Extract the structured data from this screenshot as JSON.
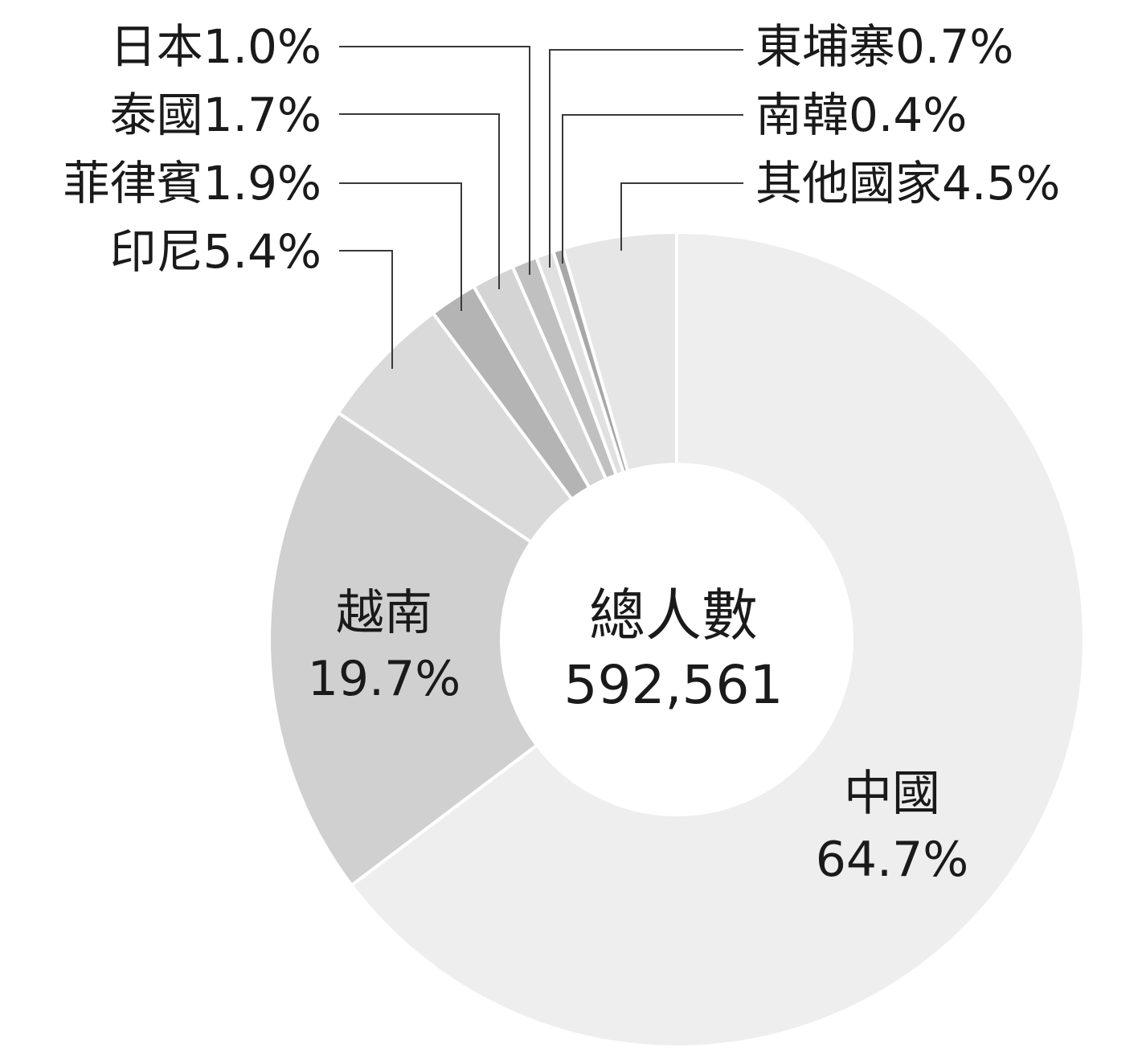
{
  "chart_data": {
    "type": "pie",
    "style": "donut",
    "center": {
      "title": "總人數",
      "value": "592,561"
    },
    "slices": [
      {
        "name": "中國",
        "percent": 64.7,
        "label": "中國",
        "value_label": "64.7%",
        "color": "#eeeeee"
      },
      {
        "name": "越南",
        "percent": 19.7,
        "label": "越南",
        "value_label": "19.7%",
        "color": "#d0d0d0"
      },
      {
        "name": "印尼",
        "percent": 5.4,
        "label": "印尼5.4%",
        "color": "#dadada"
      },
      {
        "name": "菲律賓",
        "percent": 1.9,
        "label": "菲律賓1.9%",
        "color": "#b4b4b4"
      },
      {
        "name": "泰國",
        "percent": 1.7,
        "label": "泰國1.7%",
        "color": "#d4d4d4"
      },
      {
        "name": "日本",
        "percent": 1.0,
        "label": "日本1.0%",
        "color": "#c0c0c0"
      },
      {
        "name": "東埔寨",
        "percent": 0.7,
        "label": "東埔寨0.7%",
        "color": "#e0e0e0"
      },
      {
        "name": "南韓",
        "percent": 0.4,
        "label": "南韓0.4%",
        "color": "#a8a8a8"
      },
      {
        "name": "其他國家",
        "percent": 4.5,
        "label": "其他國家4.5%",
        "color": "#e6e6e6"
      }
    ]
  }
}
